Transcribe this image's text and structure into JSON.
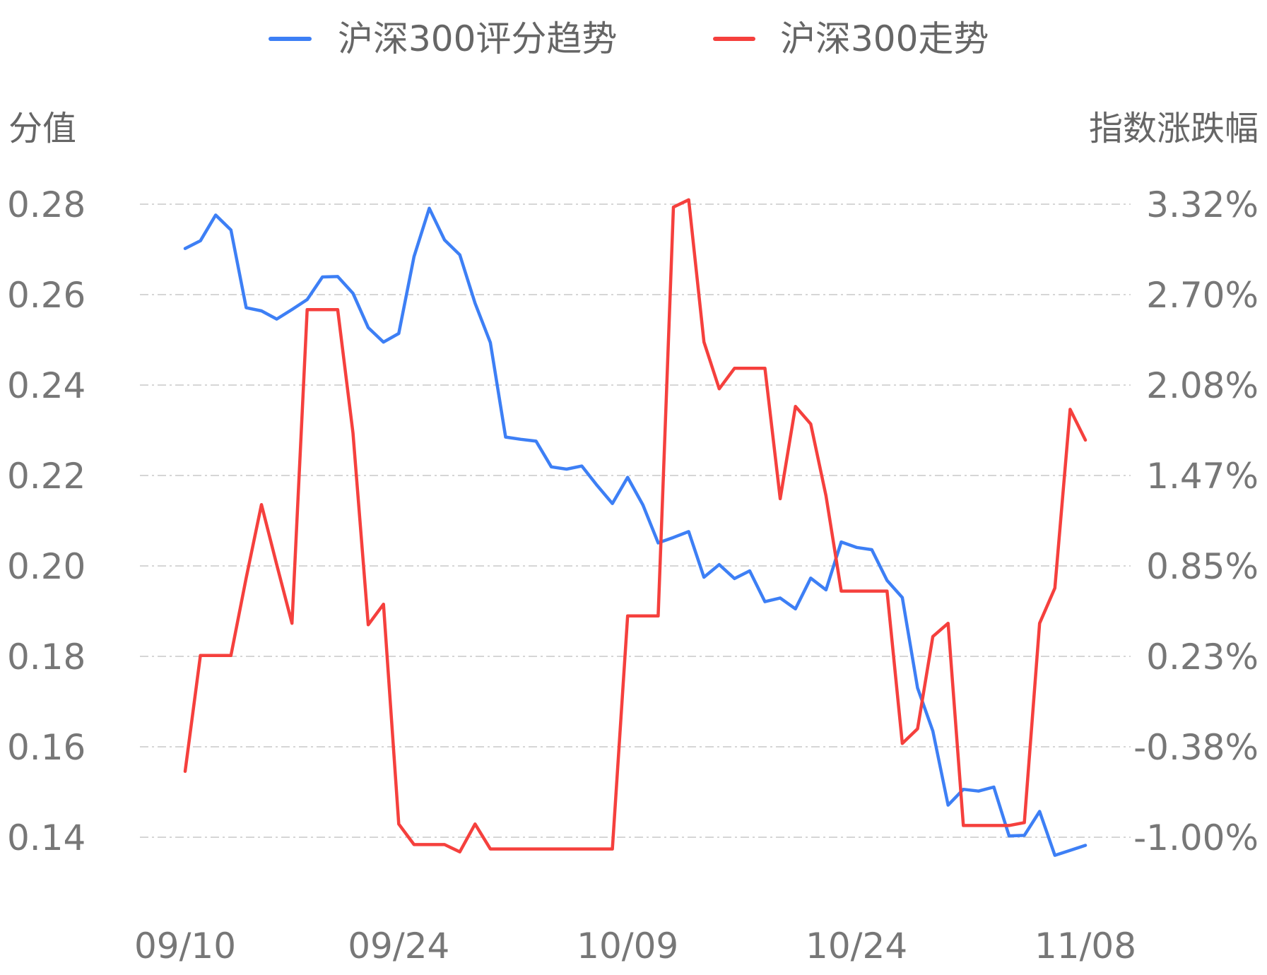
{
  "chart_data": {
    "type": "line",
    "legend": {
      "position": "top-center",
      "entries": [
        {
          "name": "沪深300评分趋势",
          "color": "#3d7ff5"
        },
        {
          "name": "沪深300走势",
          "color": "#f5403d"
        }
      ]
    },
    "left_axis": {
      "title": "分值",
      "ylim": [
        0.14,
        0.28
      ],
      "ticks": [
        "0.28",
        "0.26",
        "0.24",
        "0.22",
        "0.20",
        "0.18",
        "0.16",
        "0.14"
      ]
    },
    "right_axis": {
      "title": "指数涨跌幅",
      "ylim": [
        -1.0,
        3.32
      ],
      "ticks": [
        "3.32%",
        "2.70%",
        "2.08%",
        "1.47%",
        "0.85%",
        "0.23%",
        "-0.38%",
        "-1.00%"
      ]
    },
    "x_tick_labels": [
      {
        "label": "09/10",
        "index": 0
      },
      {
        "label": "09/24",
        "index": 14
      },
      {
        "label": "10/09",
        "index": 29
      },
      {
        "label": "10/24",
        "index": 44
      },
      {
        "label": "11/08",
        "index": 59
      }
    ],
    "grid": true,
    "series": [
      {
        "name": "沪深300评分趋势",
        "axis": "left",
        "color": "#3d7ff5",
        "values": [
          0.2702,
          0.2719,
          0.2776,
          0.2743,
          0.2571,
          0.2564,
          0.2546,
          0.2567,
          0.2589,
          0.2639,
          0.264,
          0.2603,
          0.2527,
          0.2495,
          0.2514,
          0.2684,
          0.2791,
          0.2721,
          0.2688,
          0.2581,
          0.2494,
          0.2285,
          0.228,
          0.2276,
          0.2219,
          0.2214,
          0.2221,
          0.2178,
          0.2138,
          0.2196,
          0.2135,
          0.2051,
          0.2063,
          0.2076,
          0.1975,
          0.2003,
          0.1972,
          0.1989,
          0.1921,
          0.1929,
          0.1905,
          0.1973,
          0.1947,
          0.2053,
          0.2041,
          0.2036,
          0.1968,
          0.193,
          0.173,
          0.1635,
          0.1471,
          0.1506,
          0.1502,
          0.1511,
          0.1403,
          0.1404,
          0.1457,
          0.136,
          0.1371,
          0.1382
        ]
      },
      {
        "name": "沪深300走势",
        "axis": "right",
        "color": "#f5403d",
        "values": [
          -0.55,
          0.24,
          0.24,
          0.24,
          0.77,
          1.27,
          0.86,
          0.46,
          2.6,
          2.6,
          2.6,
          1.76,
          0.45,
          0.59,
          -0.91,
          -1.05,
          -1.05,
          -1.05,
          -1.1,
          -0.91,
          -1.08,
          -1.08,
          -1.08,
          -1.08,
          -1.08,
          -1.08,
          -1.08,
          -1.08,
          -1.08,
          0.51,
          0.51,
          0.51,
          3.3,
          3.35,
          2.38,
          2.06,
          2.2,
          2.2,
          2.2,
          1.31,
          1.94,
          1.82,
          1.33,
          0.68,
          0.68,
          0.68,
          0.68,
          -0.36,
          -0.26,
          0.37,
          0.46,
          -0.92,
          -0.92,
          -0.92,
          -0.92,
          -0.9,
          0.46,
          0.7,
          1.92,
          1.71
        ]
      }
    ]
  }
}
